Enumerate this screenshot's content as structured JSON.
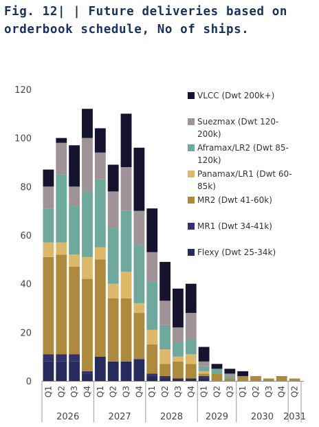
{
  "title": "Fig. 12| | Future deliveries based on orderbook schedule, No of ships.",
  "chart_data": {
    "type": "bar",
    "stacked": true,
    "ylim": [
      0,
      120
    ],
    "yticks": [
      0,
      20,
      40,
      60,
      80,
      100,
      120
    ],
    "grid": false,
    "legend_position": "right",
    "categories": [
      "Q1",
      "Q2",
      "Q3",
      "Q4",
      "Q1",
      "Q2",
      "Q3",
      "Q4",
      "Q1",
      "Q2",
      "Q3",
      "Q4",
      "Q1",
      "Q2",
      "Q3",
      "Q1",
      "Q2",
      "Q3",
      "Q4",
      "Q2"
    ],
    "years": [
      {
        "label": "2026",
        "count": 4
      },
      {
        "label": "2027",
        "count": 4
      },
      {
        "label": "2028",
        "count": 4
      },
      {
        "label": "2029",
        "count": 3
      },
      {
        "label": "2030",
        "count": 4
      },
      {
        "label": "2031",
        "count": 1
      }
    ],
    "series": [
      {
        "name": "Flexy (Dwt 25-34k)",
        "color": "#272a5c",
        "values": [
          8,
          8,
          8,
          3,
          10,
          8,
          8,
          9,
          2,
          1,
          1,
          1,
          1,
          0,
          0,
          0,
          0,
          0,
          0,
          0
        ]
      },
      {
        "name": "MR1 (Dwt 34-41k)",
        "color": "#33316a",
        "values": [
          3,
          3,
          3,
          1,
          0,
          0,
          0,
          0,
          1,
          1,
          0,
          0,
          1,
          0,
          0,
          0,
          0,
          0,
          0,
          0
        ]
      },
      {
        "name": "MR2 (Dwt 41-60k)",
        "color": "#ad8a3d",
        "values": [
          40,
          41,
          36,
          38,
          40,
          26,
          26,
          19,
          12,
          5,
          7,
          6,
          1,
          3,
          1,
          2,
          2,
          1,
          2,
          1
        ]
      },
      {
        "name": "Panamax/LR1 (Dwt 60-85k)",
        "color": "#dcb86a",
        "values": [
          6,
          5,
          5,
          9,
          5,
          6,
          11,
          4,
          6,
          6,
          2,
          4,
          1,
          0,
          0,
          0,
          0,
          0,
          0,
          0
        ]
      },
      {
        "name": "Aframax/LR2 (Dwt 85-120k)",
        "color": "#6fa89c",
        "values": [
          14,
          28,
          20,
          27,
          28,
          23,
          25,
          24,
          20,
          10,
          6,
          6,
          2,
          2,
          1,
          0,
          0,
          0,
          0,
          0
        ]
      },
      {
        "name": "Suezmax (Dwt 120-200k)",
        "color": "#9f9398",
        "values": [
          9,
          13,
          8,
          22,
          11,
          15,
          18,
          14,
          12,
          10,
          6,
          11,
          2,
          0,
          1,
          0,
          0,
          0,
          0,
          0
        ]
      },
      {
        "name": "VLCC (Dwt 200k+)",
        "color": "#16132e",
        "values": [
          7,
          2,
          17,
          12,
          10,
          11,
          22,
          26,
          18,
          16,
          16,
          12,
          6,
          2,
          2,
          2,
          0,
          0,
          0,
          0
        ]
      }
    ]
  }
}
